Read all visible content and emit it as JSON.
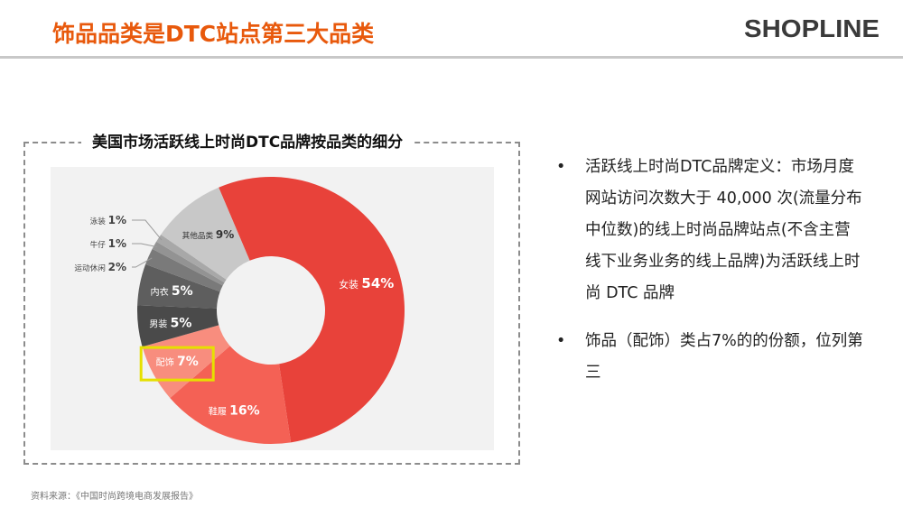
{
  "header": {
    "title": "饰品品类是DTC站点第三大品类"
  },
  "logo": {
    "text": "SHOPLINE"
  },
  "chart_data": {
    "type": "pie",
    "title": "美国市场活跃线上时尚DTC品牌按品类的细分",
    "categories": [
      "女装",
      "鞋履",
      "配饰",
      "男装",
      "内衣",
      "运动休闲",
      "牛仔",
      "泳装",
      "其他品类"
    ],
    "values": [
      54,
      16,
      7,
      5,
      5,
      2,
      1,
      1,
      9
    ],
    "unit": "%",
    "donut": true,
    "highlight": "配饰",
    "colors": [
      "#e8423a",
      "#f46155",
      "#f88d7e",
      "#4a4a4a",
      "#5e5e5e",
      "#7a7a7a",
      "#939393",
      "#a8a8a8",
      "#c8c8c8"
    ]
  },
  "bullets": [
    "活跃线上时尚DTC品牌定义：市场月度网站访问次数大于 40,000 次(流量分布中位数)的线上时尚品牌站点(不含主营线下业务业务的线上品牌)为活跃线上时尚 DTC 品牌",
    "饰品（配饰）类占7%的的份额，位列第三"
  ],
  "source": "资料来源：《中国时尚跨境电商发展报告》"
}
